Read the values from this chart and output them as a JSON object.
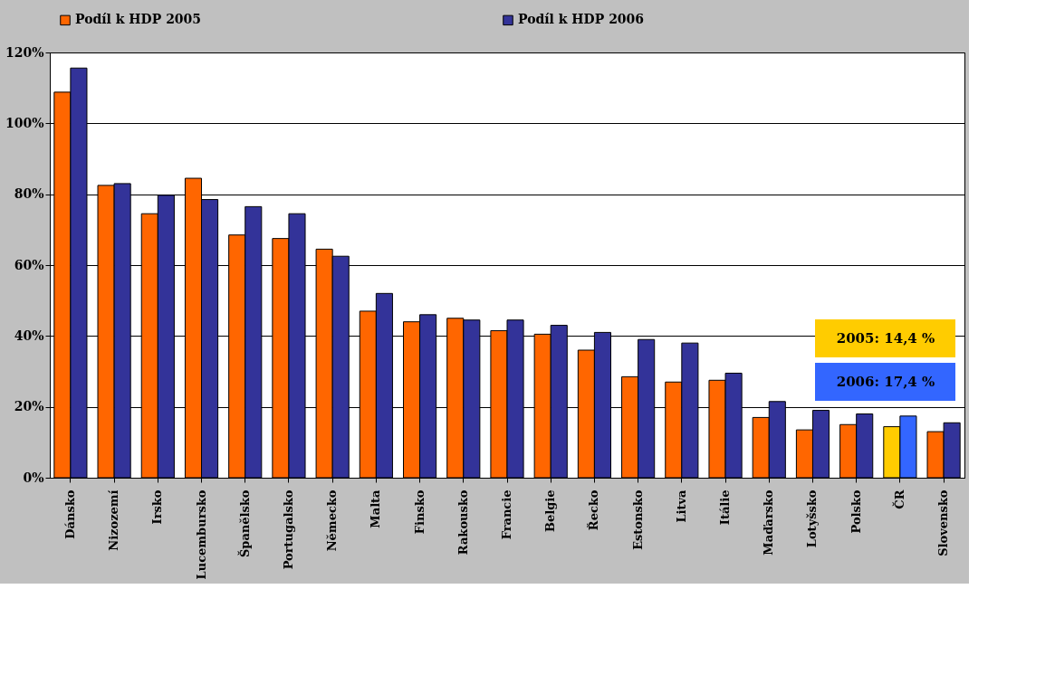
{
  "chart_data": {
    "type": "bar",
    "categories": [
      "Dánsko",
      "Nizozemí",
      "Irsko",
      "Lucembursko",
      "Španělsko",
      "Portugalsko",
      "Německo",
      "Malta",
      "Finsko",
      "Rakousko",
      "Francie",
      "Belgie",
      "Řecko",
      "Estonsko",
      "Litva",
      "Itálie",
      "Maďarsko",
      "Lotyšsko",
      "Polsko",
      "ČR",
      "Slovensko"
    ],
    "series": [
      {
        "name": "Podíl k HDP 2005",
        "color": "#ff6600",
        "colors": [
          "#ff6600",
          "#ff6600",
          "#ff6600",
          "#ff6600",
          "#ff6600",
          "#ff6600",
          "#ff6600",
          "#ff6600",
          "#ff6600",
          "#ff6600",
          "#ff6600",
          "#ff6600",
          "#ff6600",
          "#ff6600",
          "#ff6600",
          "#ff6600",
          "#ff6600",
          "#ff6600",
          "#ff6600",
          "#ffcc00",
          "#ff6600"
        ],
        "values": [
          108.8,
          82.5,
          74.5,
          84.5,
          68.5,
          67.5,
          64.5,
          47,
          44,
          45,
          41.5,
          40.5,
          36,
          28.5,
          27,
          27.5,
          17,
          13.5,
          15,
          14.4,
          13
        ]
      },
      {
        "name": "Podíl k HDP 2006",
        "color": "#333399",
        "colors": [
          "#333399",
          "#333399",
          "#333399",
          "#333399",
          "#333399",
          "#333399",
          "#333399",
          "#333399",
          "#333399",
          "#333399",
          "#333399",
          "#333399",
          "#333399",
          "#333399",
          "#333399",
          "#333399",
          "#333399",
          "#333399",
          "#333399",
          "#3366ff",
          "#333399"
        ],
        "values": [
          115.6,
          83,
          79.7,
          78.5,
          76.5,
          74.5,
          62.5,
          52,
          46,
          44.5,
          44.5,
          43,
          41,
          39,
          38,
          29.5,
          21.5,
          19,
          18,
          17.4,
          15.5
        ]
      }
    ],
    "ylim": [
      0,
      120
    ],
    "yticks": [
      {
        "value": 0,
        "label": "0%"
      },
      {
        "value": 20,
        "label": "20%"
      },
      {
        "value": 40,
        "label": "40%"
      },
      {
        "value": 60,
        "label": "60%"
      },
      {
        "value": 80,
        "label": "80%"
      },
      {
        "value": 100,
        "label": "100%"
      },
      {
        "value": 120,
        "label": "120%"
      }
    ],
    "grid": "y",
    "legend": "top",
    "annotations": [
      "2005: 14,4 %",
      "2006: 17,4 %"
    ]
  }
}
